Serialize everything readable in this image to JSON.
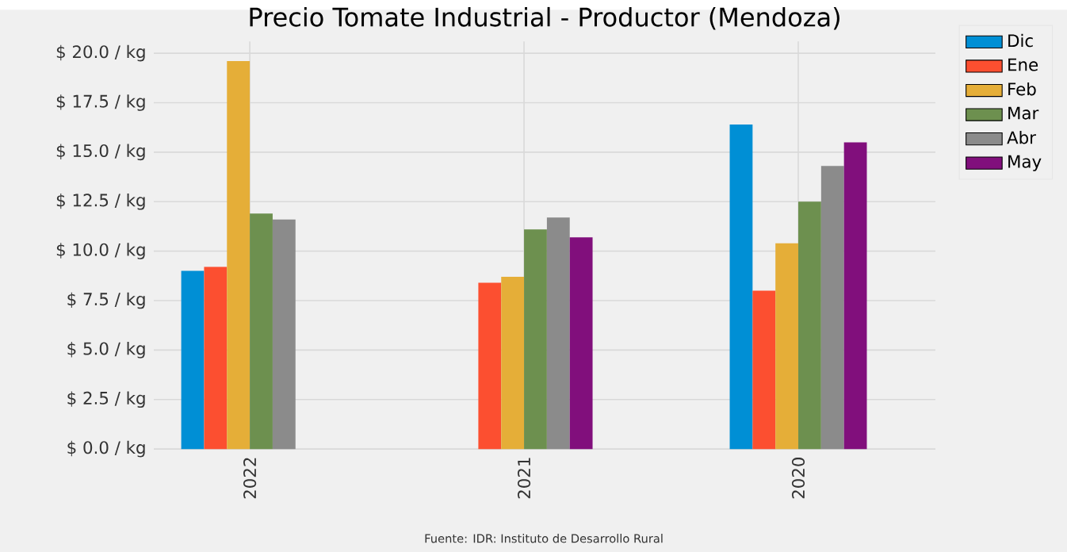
{
  "chart_data": {
    "type": "bar",
    "title": "Precio Tomate Industrial - Productor (Mendoza)",
    "categories": [
      "2022",
      "2021",
      "2020"
    ],
    "series": [
      {
        "name": "Dic",
        "color": "#008fd5",
        "values": [
          9.0,
          null,
          16.4
        ]
      },
      {
        "name": "Ene",
        "color": "#fc4f30",
        "values": [
          9.2,
          8.4,
          8.0
        ]
      },
      {
        "name": "Feb",
        "color": "#e5ae38",
        "values": [
          19.6,
          8.7,
          10.4
        ]
      },
      {
        "name": "Mar",
        "color": "#6d904f",
        "values": [
          11.9,
          11.1,
          12.5
        ]
      },
      {
        "name": "Abr",
        "color": "#8b8b8b",
        "values": [
          11.6,
          11.7,
          14.3
        ]
      },
      {
        "name": "May",
        "color": "#810f7c",
        "values": [
          null,
          10.7,
          15.5
        ]
      }
    ],
    "ylim": [
      0,
      20.6
    ],
    "yticks": [
      {
        "value": 0,
        "label": "$ 0.0 / kg"
      },
      {
        "value": 2.5,
        "label": "$ 2.5 / kg"
      },
      {
        "value": 5,
        "label": "$ 5.0 / kg"
      },
      {
        "value": 7.5,
        "label": "$ 7.5 / kg"
      },
      {
        "value": 10,
        "label": "$ 10.0 / kg"
      },
      {
        "value": 12.5,
        "label": "$ 12.5 / kg"
      },
      {
        "value": 15,
        "label": "$ 15.0 / kg"
      },
      {
        "value": 17.5,
        "label": "$ 17.5 / kg"
      },
      {
        "value": 20,
        "label": "$ 20.0 / kg"
      }
    ],
    "grid": true,
    "legend": "top right",
    "annotations": [
      "Fuente: IDR: Instituto de Desarrollo Rural"
    ]
  }
}
